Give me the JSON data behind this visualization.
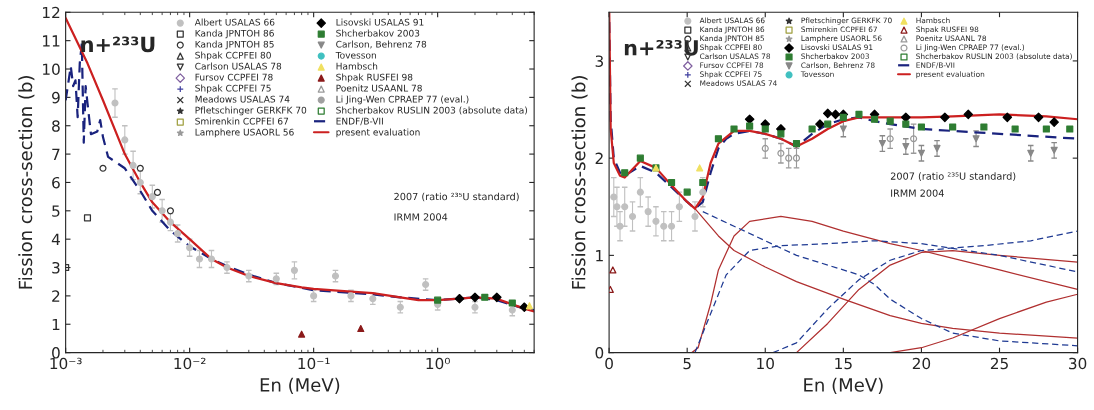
{
  "chart_data": [
    {
      "type": "line",
      "xlabel": "En (MeV)",
      "ylabel": "Fission cross-section (b)",
      "log": "x",
      "xlim": [
        0.001,
        6
      ],
      "xticks": [
        {
          "value": 0.001,
          "label": "10⁻³"
        },
        {
          "value": 0.01,
          "label": "10⁻²"
        },
        {
          "value": 0.1,
          "label": "10⁻¹"
        },
        {
          "value": 1,
          "label": "10⁰"
        }
      ],
      "ylim": [
        0,
        12
      ],
      "yticks": [
        0,
        1,
        2,
        3,
        4,
        5,
        6,
        7,
        8,
        9,
        10,
        11,
        12
      ],
      "grid": false,
      "legend": "top right",
      "annotations": [
        "n+²³³U",
        "2007 (ratio ²³⁵U standard)",
        "IRMM 2004"
      ],
      "series": [
        {
          "name": "Albert USALAS 66",
          "type": "scatter",
          "marker": "circle",
          "color": "#c0c0c0",
          "x": [
            0.0025,
            0.003,
            0.0035,
            0.004,
            0.005,
            0.006,
            0.007,
            0.008,
            0.01,
            0.012,
            0.015,
            0.02,
            0.03,
            0.05,
            0.07,
            0.1,
            0.15,
            0.2,
            0.3,
            0.5,
            0.8,
            1,
            2,
            4
          ],
          "values": [
            8.8,
            7.5,
            6.6,
            6.0,
            5.5,
            5.0,
            4.6,
            4.2,
            3.7,
            3.3,
            3.3,
            3.0,
            2.7,
            2.6,
            2.9,
            2.0,
            2.7,
            2.0,
            1.9,
            1.6,
            2.4,
            1.7,
            1.6,
            1.5
          ],
          "errors": [
            0.5,
            0.5,
            0.5,
            0.4,
            0.4,
            0.4,
            0.3,
            0.3,
            0.3,
            0.3,
            0.3,
            0.2,
            0.2,
            0.2,
            0.3,
            0.2,
            0.2,
            0.2,
            0.2,
            0.2,
            0.2,
            0.2,
            0.2,
            0.2
          ]
        },
        {
          "name": "Kanda JPNTOH 86",
          "type": "scatter",
          "marker": "square_open",
          "color": "#333333",
          "x": [
            0.001,
            0.0015
          ],
          "values": [
            3.0,
            4.75
          ]
        },
        {
          "name": "Kanda JPNTOH 85",
          "type": "scatter",
          "marker": "circle_open",
          "color": "#333333",
          "x": [
            0.002,
            0.004,
            0.0055,
            0.007
          ],
          "values": [
            6.5,
            6.5,
            5.65,
            5.0
          ]
        },
        {
          "name": "Shpak CCPFEI 80",
          "type": "scatter",
          "marker": "triangle_open",
          "color": "#333333"
        },
        {
          "name": "Carlson USALAS 78",
          "type": "scatter",
          "marker": "triangle_down_open",
          "color": "#333333"
        },
        {
          "name": "Fursov CCPFEI 78",
          "type": "scatter",
          "marker": "diamond_open",
          "color": "#8060a0"
        },
        {
          "name": "Shpak CCPFEI 75",
          "type": "scatter",
          "marker": "plus",
          "color": "#4040a0"
        },
        {
          "name": "Meadows USALAS 74",
          "type": "scatter",
          "marker": "x",
          "color": "#333333"
        },
        {
          "name": "Pfletschinger GERKFK 70",
          "type": "scatter",
          "marker": "asterisk",
          "color": "#333333"
        },
        {
          "name": "Smirenkin CCPFEI 67",
          "type": "scatter",
          "marker": "square_open",
          "color": "#a0a040"
        },
        {
          "name": "Lamphere USAORL 56",
          "type": "scatter",
          "marker": "asterisk",
          "color": "#999999"
        },
        {
          "name": "Lisovski USALAS 91",
          "type": "scatter",
          "marker": "diamond",
          "color": "#000000",
          "x": [
            1.5,
            2,
            3,
            5
          ],
          "values": [
            1.9,
            1.95,
            1.95,
            1.6
          ]
        },
        {
          "name": "Shcherbakov 2003",
          "type": "scatter",
          "marker": "square",
          "color": "#2e7d32",
          "x": [
            1,
            2.4,
            4
          ],
          "values": [
            1.85,
            1.95,
            1.75
          ]
        },
        {
          "name": "Carlson, Behrenz 78",
          "type": "scatter",
          "marker": "triangle_down",
          "color": "#888888"
        },
        {
          "name": "Tovesson",
          "type": "scatter",
          "marker": "circle",
          "color": "#40c0c0"
        },
        {
          "name": "Hambsch",
          "type": "scatter",
          "marker": "triangle",
          "color": "#f0e060",
          "x": [
            5.5
          ],
          "values": [
            1.65
          ]
        },
        {
          "name": "Shpak RUSFEI 98",
          "type": "scatter",
          "marker": "triangle",
          "color": "#8b1a1a",
          "x": [
            0.08,
            0.24
          ],
          "values": [
            0.65,
            0.85
          ]
        },
        {
          "name": "Poenitz USAANL 78",
          "type": "scatter",
          "marker": "triangle_open",
          "color": "#999999"
        },
        {
          "name": "Li Jing-Wen CPRAEP 77 (eval.)",
          "type": "scatter",
          "marker": "circle",
          "color": "#a0a0a0"
        },
        {
          "name": "Shcherbakov RUSLIN 2003 (absolute data)",
          "type": "scatter",
          "marker": "square_open",
          "color": "#2e7d32"
        },
        {
          "name": "ENDF/B-VII",
          "line_style": "dashed",
          "color": "#1a237e",
          "x": [
            0.001,
            0.00105,
            0.0011,
            0.00115,
            0.0012,
            0.00125,
            0.0013,
            0.00135,
            0.0014,
            0.00145,
            0.0015,
            0.0016,
            0.0018,
            0.0019,
            0.002,
            0.0022,
            0.003,
            0.004,
            0.005,
            0.007,
            0.01,
            0.015,
            0.02,
            0.03,
            0.05,
            0.1,
            0.3,
            0.5,
            1,
            2,
            3,
            5,
            6
          ],
          "values": [
            8.9,
            9.5,
            10.1,
            9.4,
            9.6,
            8.3,
            10.2,
            10.9,
            7.4,
            9.4,
            8.8,
            7.7,
            7.8,
            8.2,
            7.6,
            6.9,
            6.5,
            5.7,
            5.0,
            4.3,
            3.75,
            3.3,
            3.05,
            2.75,
            2.45,
            2.2,
            2.05,
            1.95,
            1.85,
            1.95,
            1.85,
            1.55,
            1.5
          ]
        },
        {
          "name": "present evaluation",
          "line_style": "solid",
          "color": "#cc2020",
          "x": [
            0.001,
            0.0015,
            0.002,
            0.003,
            0.004,
            0.005,
            0.007,
            0.01,
            0.015,
            0.02,
            0.03,
            0.05,
            0.08,
            0.1,
            0.2,
            0.3,
            0.5,
            0.7,
            1.0,
            1.5,
            2.0,
            3.0,
            4,
            5,
            6
          ],
          "values": [
            11.8,
            10.2,
            8.9,
            7.0,
            6.0,
            5.3,
            4.6,
            4.0,
            3.3,
            3.0,
            2.7,
            2.45,
            2.3,
            2.25,
            2.15,
            2.1,
            1.95,
            1.85,
            1.85,
            1.9,
            1.95,
            1.9,
            1.7,
            1.55,
            1.45
          ]
        }
      ]
    },
    {
      "type": "line",
      "xlabel": "En (MeV)",
      "ylabel": "Fission cross-section (b)",
      "xlim": [
        0,
        30
      ],
      "xticks": [
        0,
        5,
        10,
        15,
        20,
        25,
        30
      ],
      "ylim": [
        0,
        3.5
      ],
      "yticks": [
        0,
        1,
        2,
        3
      ],
      "grid": false,
      "legend": "top right",
      "annotations": [
        "n+²³³U",
        "2007 (ratio ²³⁵U standard)",
        "IRMM 2004"
      ],
      "series": [
        {
          "name": "Albert USALAS 66",
          "type": "scatter",
          "marker": "circle",
          "color": "#c0c0c0",
          "x": [
            0.3,
            0.5,
            0.7,
            1,
            1.5,
            2,
            2.5,
            3,
            3.5,
            4,
            4.5,
            5.5,
            6
          ],
          "values": [
            1.6,
            1.5,
            1.3,
            1.5,
            1.4,
            1.65,
            1.45,
            1.35,
            1.3,
            1.3,
            1.5,
            1.4,
            1.65
          ],
          "errors": [
            0.2,
            0.2,
            0.15,
            0.2,
            0.15,
            0.15,
            0.15,
            0.15,
            0.15,
            0.15,
            0.15,
            0.15,
            0.15
          ]
        },
        {
          "name": "Kanda JPNTOH 86",
          "type": "scatter",
          "marker": "square_open",
          "color": "#333333"
        },
        {
          "name": "Kanda JPNTOH 85",
          "type": "scatter",
          "marker": "circle_open",
          "color": "#333333"
        },
        {
          "name": "Shpak CCPFEI 80",
          "type": "scatter",
          "marker": "triangle_open",
          "color": "#333333"
        },
        {
          "name": "Carlson USALAS 78",
          "type": "scatter",
          "marker": "triangle_down_open",
          "color": "#333333"
        },
        {
          "name": "Fursov CCPFEI 78",
          "type": "scatter",
          "marker": "diamond_open",
          "color": "#8060a0"
        },
        {
          "name": "Shpak CCPFEI 75",
          "type": "scatter",
          "marker": "plus",
          "color": "#4040a0"
        },
        {
          "name": "Meadows USALAS 74",
          "type": "scatter",
          "marker": "x",
          "color": "#333333"
        },
        {
          "name": "Pfletschinger GERKFK 70",
          "type": "scatter",
          "marker": "asterisk",
          "color": "#333333"
        },
        {
          "name": "Smirenkin CCPFEI 67",
          "type": "scatter",
          "marker": "square_open",
          "color": "#a0a040"
        },
        {
          "name": "Lamphere USAORL 56",
          "type": "scatter",
          "marker": "asterisk",
          "color": "#999999"
        },
        {
          "name": "Lisovski USALAS 91",
          "type": "scatter",
          "marker": "diamond",
          "color": "#000000",
          "x": [
            9,
            10,
            11,
            13.5,
            14,
            14.5,
            15,
            17,
            19,
            21.5,
            23,
            25.5,
            27.5,
            28.5
          ],
          "values": [
            2.4,
            2.35,
            2.3,
            2.35,
            2.46,
            2.45,
            2.45,
            2.45,
            2.42,
            2.42,
            2.45,
            2.42,
            2.42,
            2.37
          ]
        },
        {
          "name": "Shcherbakov 2003",
          "type": "scatter",
          "marker": "square",
          "color": "#2e7d32",
          "x": [
            1,
            2,
            3,
            4,
            5,
            6,
            7,
            8,
            9,
            10,
            11,
            12,
            13,
            14,
            15,
            16,
            17,
            18,
            19,
            20,
            22,
            24,
            26,
            28,
            29.5
          ],
          "values": [
            1.85,
            2.0,
            1.9,
            1.75,
            1.65,
            1.75,
            2.2,
            2.3,
            2.33,
            2.3,
            2.25,
            2.15,
            2.3,
            2.35,
            2.42,
            2.45,
            2.4,
            2.38,
            2.35,
            2.32,
            2.32,
            2.32,
            2.3,
            2.3,
            2.3
          ]
        },
        {
          "name": "Carlson, Behrenz 78",
          "type": "scatter",
          "marker": "triangle_down",
          "color": "#888888",
          "x": [
            15,
            17.5,
            19,
            20,
            21,
            23.5,
            27,
            28.5
          ],
          "values": [
            2.3,
            2.15,
            2.12,
            2.05,
            2.1,
            2.2,
            2.05,
            2.08
          ],
          "errors": [
            0.08,
            0.08,
            0.08,
            0.08,
            0.08,
            0.08,
            0.08,
            0.08
          ]
        },
        {
          "name": "Tovesson",
          "type": "scatter",
          "marker": "circle",
          "color": "#40c0c0"
        },
        {
          "name": "Hambsch",
          "type": "scatter",
          "marker": "triangle",
          "color": "#f0e060",
          "x": [
            3,
            5.8
          ],
          "values": [
            1.9,
            1.9
          ]
        },
        {
          "name": "Shpak RUSFEI 98",
          "type": "scatter",
          "marker": "triangle_open",
          "color": "#8b1a1a",
          "x": [
            0.08,
            0.24
          ],
          "values": [
            0.65,
            0.85
          ]
        },
        {
          "name": "Poenitz USAANL 78",
          "type": "scatter",
          "marker": "triangle_open",
          "color": "#999999"
        },
        {
          "name": "Li Jing-Wen CPRAEP 77 (eval.)",
          "type": "scatter",
          "marker": "circle_open",
          "color": "#999999",
          "x": [
            10,
            11,
            11.5,
            12,
            18,
            19.5
          ],
          "values": [
            2.1,
            2.05,
            2.0,
            2.0,
            2.2,
            2.2
          ],
          "errors": [
            0.1,
            0.1,
            0.1,
            0.1,
            0.1,
            0.15
          ]
        },
        {
          "name": "Shcherbakov RUSLIN 2003 (absolute data)",
          "type": "scatter",
          "marker": "square_open",
          "color": "#2e7d32"
        },
        {
          "line_style": "solid",
          "color": "#b03030",
          "x": [
            5.5,
            7,
            8,
            10,
            12,
            15,
            18,
            20,
            22,
            25,
            30
          ],
          "values": [
            1.48,
            1.2,
            1.05,
            0.88,
            0.73,
            0.55,
            0.38,
            0.3,
            0.25,
            0.2,
            0.15
          ]
        },
        {
          "line_style": "solid",
          "color": "#b03030",
          "x": [
            0,
            5.3,
            5.7,
            6.5,
            7,
            8,
            9,
            11,
            13,
            15,
            18,
            20,
            25,
            30
          ],
          "values": [
            0,
            0,
            0.05,
            0.5,
            0.85,
            1.2,
            1.35,
            1.4,
            1.35,
            1.25,
            1.12,
            1.05,
            0.85,
            0.65
          ]
        },
        {
          "line_style": "solid",
          "color": "#b03030",
          "x": [
            12,
            14,
            16,
            18,
            20,
            22,
            25,
            30
          ],
          "values": [
            0,
            0.3,
            0.65,
            0.9,
            1.03,
            1.05,
            1.0,
            0.93
          ]
        },
        {
          "line_style": "solid",
          "color": "#b03030",
          "x": [
            18,
            20,
            22,
            25,
            28,
            30
          ],
          "values": [
            0,
            0.05,
            0.15,
            0.35,
            0.52,
            0.6
          ]
        },
        {
          "line_style": "dashed",
          "color": "#1f3a93",
          "x": [
            6,
            8,
            10,
            12,
            14,
            16,
            17,
            18,
            20,
            22,
            25,
            30
          ],
          "values": [
            1.45,
            1.3,
            1.15,
            1.0,
            0.9,
            0.8,
            0.7,
            0.55,
            0.35,
            0.2,
            0.12,
            0.07
          ]
        },
        {
          "line_style": "dashed",
          "color": "#1f3a93",
          "x": [
            5.5,
            6.5,
            7.5,
            9,
            11,
            14,
            17,
            20,
            25,
            30
          ],
          "values": [
            0,
            0.4,
            0.8,
            1.05,
            1.1,
            1.12,
            1.15,
            1.12,
            1.0,
            0.83
          ]
        },
        {
          "line_style": "dashed",
          "color": "#1f3a93",
          "x": [
            10.5,
            12,
            14,
            16,
            18,
            20,
            24,
            27,
            30
          ],
          "values": [
            0,
            0.1,
            0.45,
            0.75,
            0.95,
            1.05,
            1.1,
            1.15,
            1.25
          ]
        },
        {
          "name": "ENDF/B-VII",
          "line_style": "dashed",
          "color": "#1a237e",
          "x": [
            0.01,
            0.1,
            0.3,
            0.7,
            1,
            2,
            3,
            4,
            5,
            5.5,
            6,
            6.5,
            7,
            7.5,
            8,
            9,
            10,
            11,
            12,
            13,
            14,
            15,
            16,
            17,
            18,
            20,
            22,
            25,
            30
          ],
          "values": [
            3.4,
            2.4,
            2.0,
            1.85,
            1.82,
            1.92,
            1.85,
            1.7,
            1.55,
            1.48,
            1.55,
            1.85,
            2.1,
            2.2,
            2.25,
            2.28,
            2.25,
            2.2,
            2.12,
            2.25,
            2.35,
            2.4,
            2.42,
            2.38,
            2.35,
            2.3,
            2.28,
            2.25,
            2.2
          ]
        },
        {
          "name": "present evaluation",
          "line_style": "solid",
          "color": "#cc2020",
          "x": [
            0.01,
            0.1,
            0.3,
            0.7,
            1,
            2,
            3,
            4,
            5,
            5.5,
            6,
            6.5,
            7,
            8,
            9,
            10,
            11,
            12,
            13,
            14,
            15,
            16,
            18,
            20,
            22,
            25,
            28,
            30
          ],
          "values": [
            3.5,
            2.3,
            1.95,
            1.82,
            1.8,
            1.97,
            1.9,
            1.72,
            1.55,
            1.48,
            1.6,
            1.95,
            2.15,
            2.28,
            2.28,
            2.25,
            2.2,
            2.12,
            2.2,
            2.3,
            2.38,
            2.42,
            2.42,
            2.42,
            2.43,
            2.45,
            2.43,
            2.4
          ]
        }
      ]
    }
  ]
}
